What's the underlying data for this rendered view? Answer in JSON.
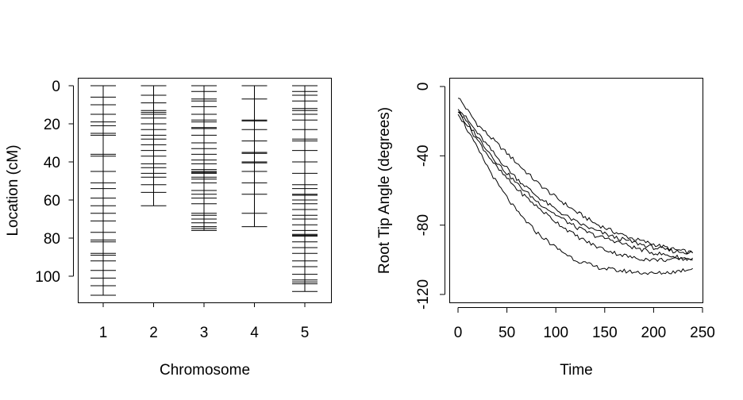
{
  "chart_data": [
    {
      "type": "genetic-map",
      "xlabel": "Chromosome",
      "ylabel": "Location (cM)",
      "categories": [
        "1",
        "2",
        "3",
        "4",
        "5"
      ],
      "ylim": [
        0,
        115
      ],
      "y_reversed": true,
      "yticks": [
        0,
        20,
        40,
        60,
        80,
        100
      ],
      "markers": [
        [
          0,
          6,
          10,
          15,
          19,
          21,
          25,
          26,
          36,
          37,
          45,
          51,
          54,
          59,
          63,
          67,
          71,
          77,
          81,
          82,
          88,
          89,
          92,
          97,
          101,
          105,
          110
        ],
        [
          0,
          5,
          9,
          13,
          14,
          15,
          17,
          20,
          23,
          26,
          28,
          31,
          34,
          37,
          41,
          43,
          46,
          48,
          52,
          56,
          63
        ],
        [
          0,
          3,
          7,
          8,
          11,
          15,
          18,
          19,
          22,
          22.5,
          26,
          30,
          33,
          36,
          39,
          41,
          44,
          45,
          45.5,
          46,
          48,
          49,
          51,
          55,
          57,
          59,
          62,
          67,
          68,
          70,
          72,
          74,
          75,
          76
        ],
        [
          0,
          7,
          18,
          18.5,
          23,
          29,
          35,
          35.5,
          40,
          40.5,
          45,
          51,
          57,
          67,
          74
        ],
        [
          0,
          3,
          5,
          8,
          12,
          13,
          15,
          18,
          23,
          28,
          29,
          34,
          40,
          46,
          52,
          54,
          57,
          57.5,
          60,
          62,
          65,
          68,
          70,
          73,
          76,
          78,
          78.5,
          79,
          82,
          85,
          88,
          92,
          95,
          99,
          102,
          103,
          104,
          108
        ]
      ]
    },
    {
      "type": "line",
      "xlabel": "Time",
      "ylabel": "Root Tip Angle (degrees)",
      "xlim": [
        -5,
        250
      ],
      "ylim": [
        -125,
        5
      ],
      "xticks": [
        0,
        50,
        100,
        150,
        200,
        250
      ],
      "yticks": [
        0,
        -40,
        -80,
        -120
      ],
      "series": [
        {
          "x": [
            0,
            20,
            40,
            60,
            80,
            100,
            120,
            140,
            160,
            180,
            200,
            220,
            240
          ],
          "y": [
            -6,
            -22,
            -33,
            -44,
            -55,
            -64,
            -72,
            -79,
            -84,
            -88,
            -91,
            -94,
            -96
          ]
        },
        {
          "x": [
            0,
            20,
            40,
            60,
            80,
            100,
            120,
            140,
            160,
            180,
            200,
            220,
            240
          ],
          "y": [
            -12,
            -27,
            -41,
            -53,
            -63,
            -71,
            -78,
            -83,
            -87,
            -90,
            -93,
            -95,
            -96
          ]
        },
        {
          "x": [
            0,
            20,
            40,
            60,
            80,
            100,
            120,
            140,
            160,
            180,
            200,
            220,
            240
          ],
          "y": [
            -14,
            -29,
            -44,
            -56,
            -66,
            -74,
            -81,
            -86,
            -89,
            -93,
            -96,
            -98,
            -100
          ]
        },
        {
          "x": [
            0,
            20,
            40,
            60,
            80,
            100,
            120,
            140,
            160,
            180,
            200,
            220,
            240
          ],
          "y": [
            -14,
            -31,
            -47,
            -59,
            -69,
            -78,
            -86,
            -92,
            -96,
            -99,
            -100,
            -100,
            -99
          ]
        },
        {
          "x": [
            0,
            20,
            40,
            60,
            80,
            100,
            120,
            140,
            160,
            180,
            200,
            220,
            240
          ],
          "y": [
            -15,
            -36,
            -56,
            -72,
            -84,
            -93,
            -100,
            -104,
            -106,
            -107,
            -108,
            -107,
            -105
          ]
        }
      ]
    }
  ]
}
